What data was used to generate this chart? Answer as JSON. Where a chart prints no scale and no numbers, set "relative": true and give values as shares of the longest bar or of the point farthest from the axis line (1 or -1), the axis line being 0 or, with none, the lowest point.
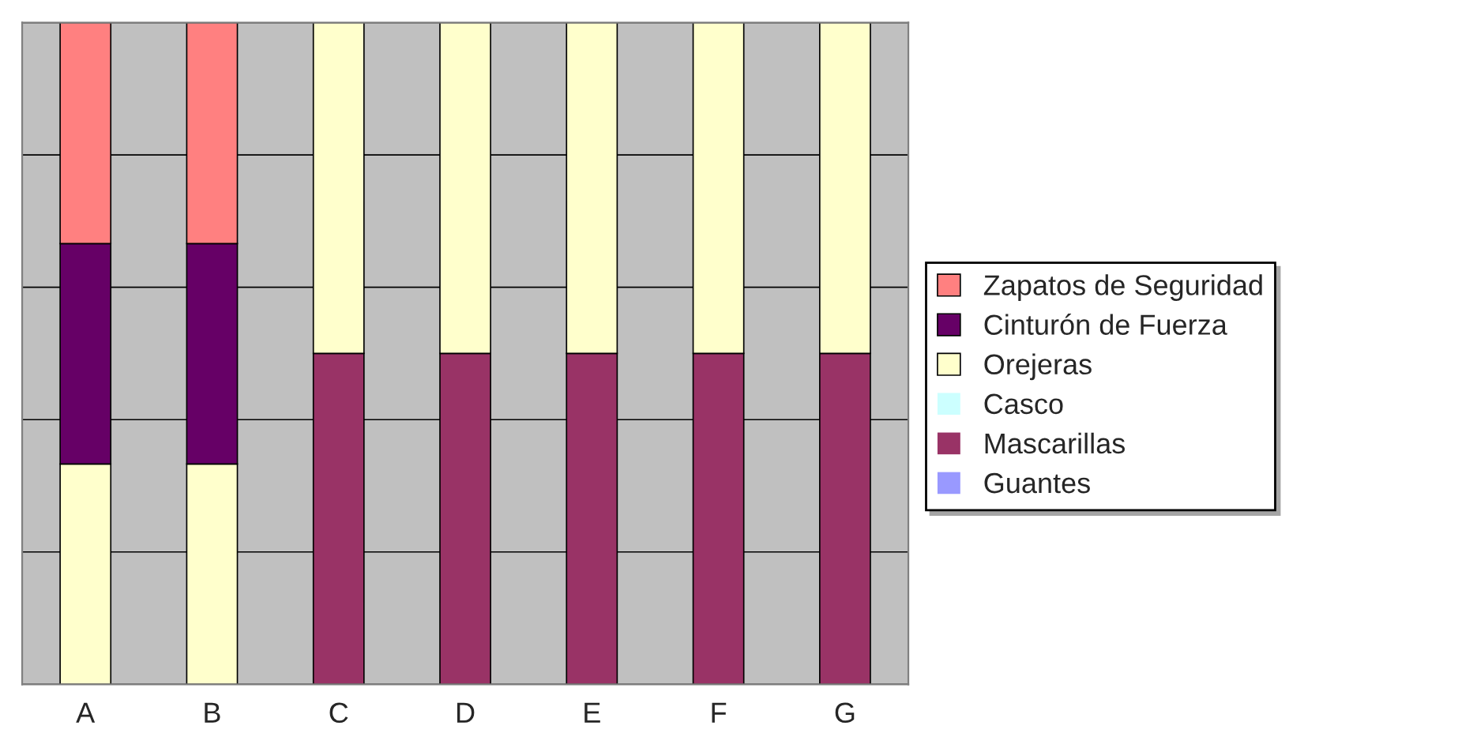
{
  "chart_data": {
    "type": "bar",
    "stacked": true,
    "relative": true,
    "grid": "y",
    "legend": "right",
    "categories": [
      "A",
      "B",
      "C",
      "D",
      "E",
      "F",
      "G"
    ],
    "series": [
      {
        "name": "Guantes",
        "color": "#9999ff",
        "values": [
          0,
          0,
          0,
          0,
          0,
          0,
          0
        ]
      },
      {
        "name": "Mascarillas",
        "color": "#993366",
        "values": [
          0,
          0,
          0.5,
          0.5,
          0.5,
          0.5,
          0.5
        ]
      },
      {
        "name": "Casco",
        "color": "#ccffff",
        "values": [
          0,
          0,
          0,
          0,
          0,
          0,
          0
        ]
      },
      {
        "name": "Orejeras",
        "color": "#ffffcc",
        "values": [
          0.333,
          0.333,
          0.5,
          0.5,
          0.5,
          0.5,
          0.5
        ]
      },
      {
        "name": "Cinturón de Fuerza",
        "color": "#660066",
        "values": [
          0.333,
          0.333,
          0,
          0,
          0,
          0,
          0
        ]
      },
      {
        "name": "Zapatos de Seguridad",
        "color": "#ff8080",
        "values": [
          0.334,
          0.334,
          0,
          0,
          0,
          0,
          0
        ]
      }
    ]
  }
}
